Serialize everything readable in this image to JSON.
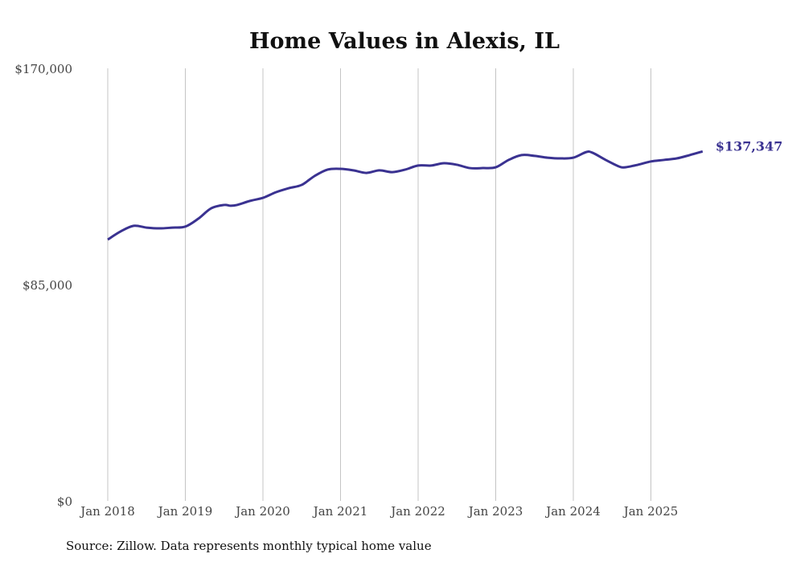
{
  "chart_data": {
    "type": "line",
    "title": "Home Values in Alexis, IL",
    "source": "Source: Zillow. Data represents monthly typical home value",
    "xlabel": "",
    "ylabel": "",
    "ylim": [
      0,
      170000
    ],
    "y_ticks": [
      {
        "value": 0,
        "label": "$0"
      },
      {
        "value": 85000,
        "label": "$85,000"
      },
      {
        "value": 170000,
        "label": "$170,000"
      }
    ],
    "x_ticks": [
      {
        "month": 0,
        "label": "Jan 2018"
      },
      {
        "month": 12,
        "label": "Jan 2019"
      },
      {
        "month": 24,
        "label": "Jan 2020"
      },
      {
        "month": 36,
        "label": "Jan 2021"
      },
      {
        "month": 48,
        "label": "Jan 2022"
      },
      {
        "month": 60,
        "label": "Jan 2023"
      },
      {
        "month": 72,
        "label": "Jan 2024"
      },
      {
        "month": 84,
        "label": "Jan 2025"
      }
    ],
    "x_range_months": [
      0,
      92
    ],
    "grid": "vertical",
    "line_color": "#3a3291",
    "end_label": "$137,347",
    "series": [
      {
        "name": "Typical home value",
        "points": [
          [
            0,
            102700
          ],
          [
            2,
            105900
          ],
          [
            4,
            108100
          ],
          [
            6,
            107400
          ],
          [
            8,
            107100
          ],
          [
            10,
            107400
          ],
          [
            12,
            107800
          ],
          [
            14,
            110900
          ],
          [
            16,
            115000
          ],
          [
            18,
            116300
          ],
          [
            19,
            116000
          ],
          [
            20,
            116300
          ],
          [
            22,
            117900
          ],
          [
            24,
            119100
          ],
          [
            26,
            121300
          ],
          [
            28,
            122900
          ],
          [
            30,
            124200
          ],
          [
            32,
            127700
          ],
          [
            34,
            130200
          ],
          [
            36,
            130500
          ],
          [
            38,
            129900
          ],
          [
            40,
            128900
          ],
          [
            42,
            129900
          ],
          [
            44,
            129200
          ],
          [
            46,
            130200
          ],
          [
            48,
            131800
          ],
          [
            50,
            131800
          ],
          [
            52,
            132700
          ],
          [
            54,
            132100
          ],
          [
            56,
            130800
          ],
          [
            58,
            130800
          ],
          [
            60,
            131100
          ],
          [
            62,
            134000
          ],
          [
            64,
            135900
          ],
          [
            66,
            135600
          ],
          [
            68,
            134900
          ],
          [
            70,
            134600
          ],
          [
            72,
            134900
          ],
          [
            74,
            137100
          ],
          [
            75,
            136800
          ],
          [
            77,
            134000
          ],
          [
            79,
            131500
          ],
          [
            80,
            131100
          ],
          [
            82,
            132100
          ],
          [
            84,
            133400
          ],
          [
            86,
            134000
          ],
          [
            88,
            134600
          ],
          [
            90,
            135900
          ],
          [
            92,
            137347
          ]
        ]
      }
    ]
  }
}
